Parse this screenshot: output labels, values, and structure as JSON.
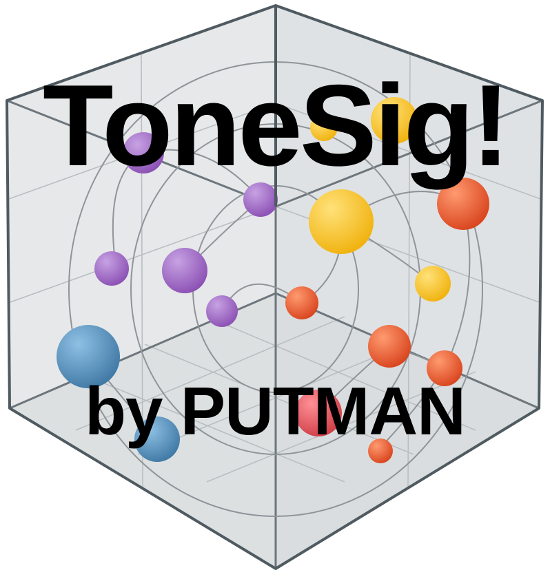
{
  "logo": {
    "title": "ToneSig!",
    "byline": "by PUTMAN",
    "icon": "cube-network-graphic",
    "colors": {
      "background": "#ffffff",
      "cube_face": "#e4e6e7",
      "cube_edge": "#4f5a61",
      "grid_line": "#b9bec2",
      "curve": "#8e9499",
      "purple": "#9a62bf",
      "yellow": "#f6c425",
      "orange": "#e5552c",
      "red": "#dd4b52",
      "blue": "#4f88b3",
      "text": "#000000"
    }
  }
}
